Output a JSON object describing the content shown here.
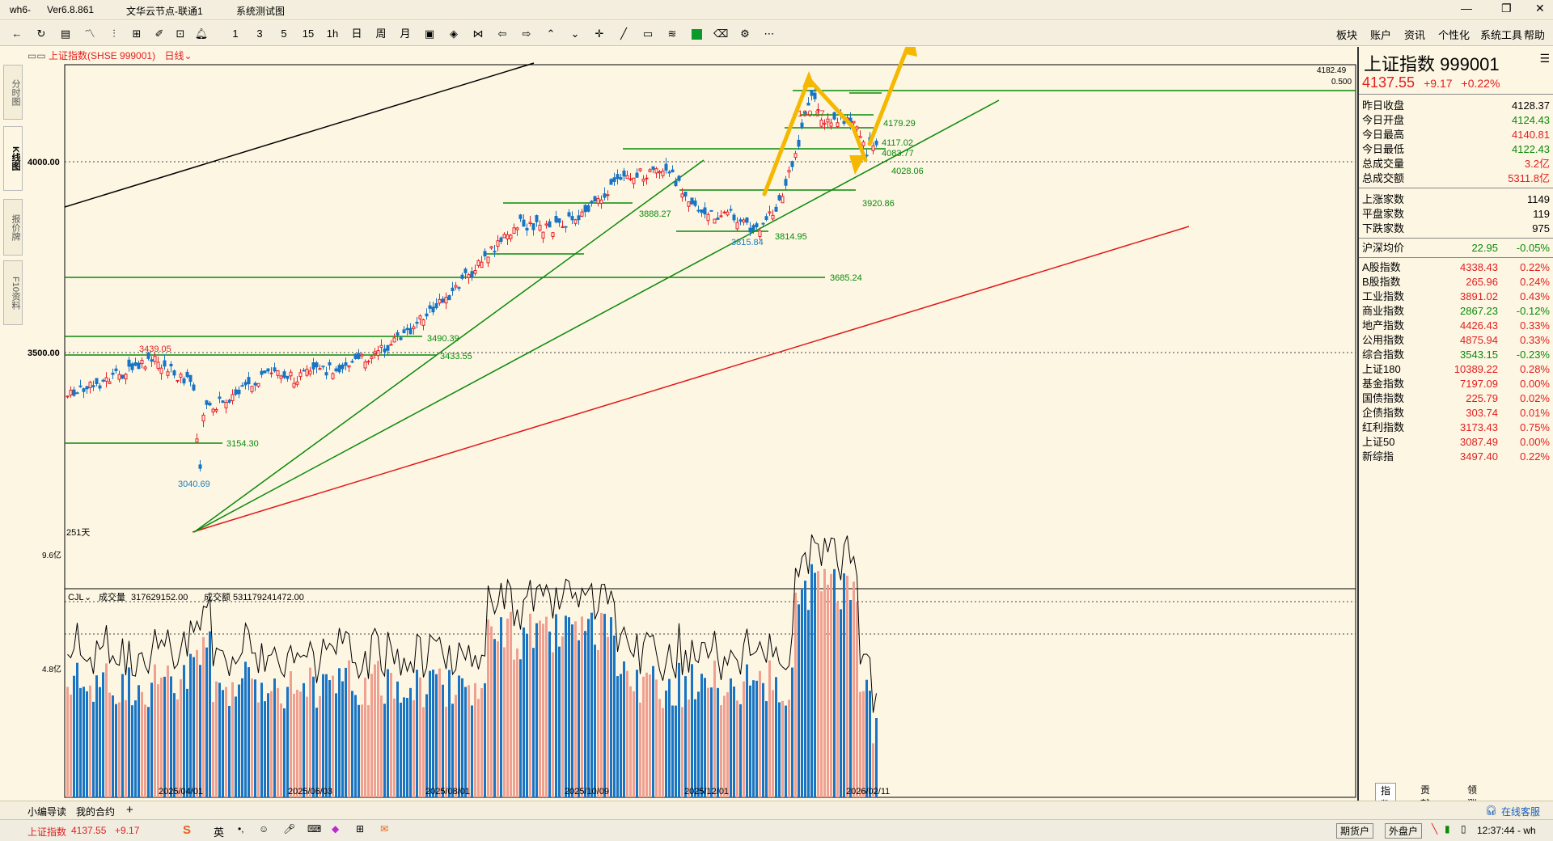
{
  "window": {
    "app_name": "wh6",
    "version": "Ver6.8.861",
    "server": "文华云节点-联通1",
    "test": "系统测试图",
    "controls": [
      "—",
      "❐",
      "✕"
    ]
  },
  "toolbar": {
    "periods": [
      "1",
      "3",
      "5",
      "15",
      "1h",
      "日",
      "周",
      "月"
    ],
    "menu": [
      "板块",
      "账户",
      "资讯",
      "个性化",
      "系统工具",
      "帮助"
    ]
  },
  "chart_header": {
    "symbol": "上证指数(SHSE 999001)",
    "period": "日线",
    "bar_count": "251天"
  },
  "side_tabs": [
    "分时图",
    "K线图",
    "报价牌",
    "F10资料"
  ],
  "chart_data": {
    "type": "candlestick",
    "y_ticks": [
      "4000.00",
      "3500.00"
    ],
    "x_ticks": [
      "2025/04/01",
      "2025/06/03",
      "2025/08/01",
      "2025/10/09",
      "2025/12/01",
      "2026/02/11"
    ],
    "price_labels": [
      {
        "text": "4190.87",
        "color": "#e02020"
      },
      {
        "text": "4179.29",
        "color": "#0a8a0a"
      },
      {
        "text": "4117.02",
        "color": "#0a8a0a"
      },
      {
        "text": "4083.77",
        "color": "#0a8a0a"
      },
      {
        "text": "4028.06",
        "color": "#0a8a0a"
      },
      {
        "text": "3920.86",
        "color": "#0a8a0a"
      },
      {
        "text": "3888.27",
        "color": "#0a8a0a"
      },
      {
        "text": "3814.95",
        "color": "#0a8a0a"
      },
      {
        "text": "3815.84",
        "color": "#1a7fbf"
      },
      {
        "text": "3685.24",
        "color": "#0a8a0a"
      },
      {
        "text": "3490.39",
        "color": "#0a8a0a"
      },
      {
        "text": "3433.55",
        "color": "#0a8a0a"
      },
      {
        "text": "3439.05",
        "color": "#e02020"
      },
      {
        "text": "3154.30",
        "color": "#0a8a0a"
      },
      {
        "text": "3040.69",
        "color": "#1a7fbf"
      }
    ],
    "right_axis": {
      "value": "4182.49",
      "step": "0.500"
    },
    "volume": {
      "indicator": "CJL",
      "volume_label": "成交量",
      "volume_value": "317629152.00",
      "amount_label": "成交额",
      "amount_value": "531179241472.00",
      "y_ticks": [
        "9.6亿",
        "4.8亿"
      ]
    }
  },
  "quote": {
    "name": "上证指数",
    "code": "999001",
    "price": "4137.55",
    "change": "+9.17",
    "pct": "+0.22%",
    "rows": [
      {
        "label": "昨日收盘",
        "value": "4128.37",
        "color": "#000000"
      },
      {
        "label": "今日开盘",
        "value": "4124.43",
        "color": "#0a8a0a"
      },
      {
        "label": "今日最高",
        "value": "4140.81",
        "color": "#e02020"
      },
      {
        "label": "今日最低",
        "value": "4122.43",
        "color": "#0a8a0a"
      },
      {
        "label": "总成交量",
        "value": "3.2亿",
        "color": "#e02020"
      },
      {
        "label": "总成交额",
        "value": "5311.8亿",
        "color": "#e02020"
      }
    ],
    "breadth": [
      {
        "label": "上涨家数",
        "value": "1149"
      },
      {
        "label": "平盘家数",
        "value": "119"
      },
      {
        "label": "下跌家数",
        "value": "975"
      }
    ],
    "avg": {
      "label": "沪深均价",
      "value": "22.95",
      "pct": "-0.05%"
    },
    "indices": [
      {
        "label": "A股指数",
        "value": "4338.43",
        "pct": "0.22%",
        "color": "#e02020"
      },
      {
        "label": "B股指数",
        "value": "265.96",
        "pct": "0.24%",
        "color": "#e02020"
      },
      {
        "label": "工业指数",
        "value": "3891.02",
        "pct": "0.43%",
        "color": "#e02020"
      },
      {
        "label": "商业指数",
        "value": "2867.23",
        "pct": "-0.12%",
        "color": "#0a8a0a"
      },
      {
        "label": "地产指数",
        "value": "4426.43",
        "pct": "0.33%",
        "color": "#e02020"
      },
      {
        "label": "公用指数",
        "value": "4875.94",
        "pct": "0.33%",
        "color": "#e02020"
      },
      {
        "label": "综合指数",
        "value": "3543.15",
        "pct": "-0.23%",
        "color": "#0a8a0a"
      },
      {
        "label": "上证180",
        "value": "10389.22",
        "pct": "0.28%",
        "color": "#e02020"
      },
      {
        "label": "基金指数",
        "value": "7197.09",
        "pct": "0.00%",
        "color": "#e02020"
      },
      {
        "label": "国债指数",
        "value": "225.79",
        "pct": "0.02%",
        "color": "#e02020"
      },
      {
        "label": "企债指数",
        "value": "303.74",
        "pct": "0.01%",
        "color": "#e02020"
      },
      {
        "label": "红利指数",
        "value": "3173.43",
        "pct": "0.75%",
        "color": "#e02020"
      },
      {
        "label": "上证50",
        "value": "3087.49",
        "pct": "0.00%",
        "color": "#e02020"
      },
      {
        "label": "新综指",
        "value": "3497.40",
        "pct": "0.22%",
        "color": "#e02020"
      }
    ],
    "tabs": [
      "指数",
      "贡献度",
      "领涨"
    ]
  },
  "status1": {
    "left": [
      "小编导读",
      "我的合约",
      "+"
    ],
    "service": "在线客服"
  },
  "status2": {
    "symbol": "上证指数",
    "price": "4137.55",
    "change": "+9.17",
    "ime": "英",
    "futures": "期货户",
    "external": "外盘户",
    "time": "12:37:44 - wh"
  }
}
